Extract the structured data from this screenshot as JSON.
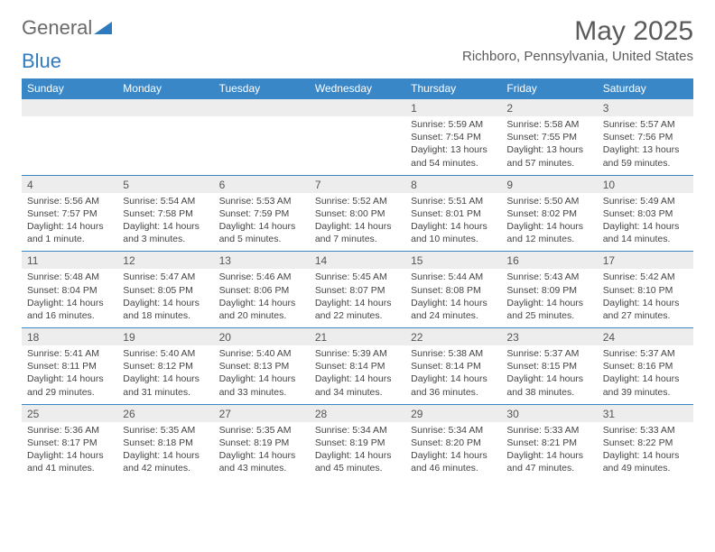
{
  "logo": {
    "text_a": "General",
    "text_b": "Blue"
  },
  "title": "May 2025",
  "location": "Richboro, Pennsylvania, United States",
  "colors": {
    "header_bg": "#3a87c7",
    "header_text": "#ffffff",
    "date_row_bg": "#ededed",
    "row_border": "#3a87c7",
    "body_text": "#444444"
  },
  "weekdays": [
    "Sunday",
    "Monday",
    "Tuesday",
    "Wednesday",
    "Thursday",
    "Friday",
    "Saturday"
  ],
  "weeks": [
    [
      null,
      null,
      null,
      null,
      {
        "d": "1",
        "sr": "5:59 AM",
        "ss": "7:54 PM",
        "dl": "13 hours and 54 minutes."
      },
      {
        "d": "2",
        "sr": "5:58 AM",
        "ss": "7:55 PM",
        "dl": "13 hours and 57 minutes."
      },
      {
        "d": "3",
        "sr": "5:57 AM",
        "ss": "7:56 PM",
        "dl": "13 hours and 59 minutes."
      }
    ],
    [
      {
        "d": "4",
        "sr": "5:56 AM",
        "ss": "7:57 PM",
        "dl": "14 hours and 1 minute."
      },
      {
        "d": "5",
        "sr": "5:54 AM",
        "ss": "7:58 PM",
        "dl": "14 hours and 3 minutes."
      },
      {
        "d": "6",
        "sr": "5:53 AM",
        "ss": "7:59 PM",
        "dl": "14 hours and 5 minutes."
      },
      {
        "d": "7",
        "sr": "5:52 AM",
        "ss": "8:00 PM",
        "dl": "14 hours and 7 minutes."
      },
      {
        "d": "8",
        "sr": "5:51 AM",
        "ss": "8:01 PM",
        "dl": "14 hours and 10 minutes."
      },
      {
        "d": "9",
        "sr": "5:50 AM",
        "ss": "8:02 PM",
        "dl": "14 hours and 12 minutes."
      },
      {
        "d": "10",
        "sr": "5:49 AM",
        "ss": "8:03 PM",
        "dl": "14 hours and 14 minutes."
      }
    ],
    [
      {
        "d": "11",
        "sr": "5:48 AM",
        "ss": "8:04 PM",
        "dl": "14 hours and 16 minutes."
      },
      {
        "d": "12",
        "sr": "5:47 AM",
        "ss": "8:05 PM",
        "dl": "14 hours and 18 minutes."
      },
      {
        "d": "13",
        "sr": "5:46 AM",
        "ss": "8:06 PM",
        "dl": "14 hours and 20 minutes."
      },
      {
        "d": "14",
        "sr": "5:45 AM",
        "ss": "8:07 PM",
        "dl": "14 hours and 22 minutes."
      },
      {
        "d": "15",
        "sr": "5:44 AM",
        "ss": "8:08 PM",
        "dl": "14 hours and 24 minutes."
      },
      {
        "d": "16",
        "sr": "5:43 AM",
        "ss": "8:09 PM",
        "dl": "14 hours and 25 minutes."
      },
      {
        "d": "17",
        "sr": "5:42 AM",
        "ss": "8:10 PM",
        "dl": "14 hours and 27 minutes."
      }
    ],
    [
      {
        "d": "18",
        "sr": "5:41 AM",
        "ss": "8:11 PM",
        "dl": "14 hours and 29 minutes."
      },
      {
        "d": "19",
        "sr": "5:40 AM",
        "ss": "8:12 PM",
        "dl": "14 hours and 31 minutes."
      },
      {
        "d": "20",
        "sr": "5:40 AM",
        "ss": "8:13 PM",
        "dl": "14 hours and 33 minutes."
      },
      {
        "d": "21",
        "sr": "5:39 AM",
        "ss": "8:14 PM",
        "dl": "14 hours and 34 minutes."
      },
      {
        "d": "22",
        "sr": "5:38 AM",
        "ss": "8:14 PM",
        "dl": "14 hours and 36 minutes."
      },
      {
        "d": "23",
        "sr": "5:37 AM",
        "ss": "8:15 PM",
        "dl": "14 hours and 38 minutes."
      },
      {
        "d": "24",
        "sr": "5:37 AM",
        "ss": "8:16 PM",
        "dl": "14 hours and 39 minutes."
      }
    ],
    [
      {
        "d": "25",
        "sr": "5:36 AM",
        "ss": "8:17 PM",
        "dl": "14 hours and 41 minutes."
      },
      {
        "d": "26",
        "sr": "5:35 AM",
        "ss": "8:18 PM",
        "dl": "14 hours and 42 minutes."
      },
      {
        "d": "27",
        "sr": "5:35 AM",
        "ss": "8:19 PM",
        "dl": "14 hours and 43 minutes."
      },
      {
        "d": "28",
        "sr": "5:34 AM",
        "ss": "8:19 PM",
        "dl": "14 hours and 45 minutes."
      },
      {
        "d": "29",
        "sr": "5:34 AM",
        "ss": "8:20 PM",
        "dl": "14 hours and 46 minutes."
      },
      {
        "d": "30",
        "sr": "5:33 AM",
        "ss": "8:21 PM",
        "dl": "14 hours and 47 minutes."
      },
      {
        "d": "31",
        "sr": "5:33 AM",
        "ss": "8:22 PM",
        "dl": "14 hours and 49 minutes."
      }
    ]
  ],
  "labels": {
    "sunrise": "Sunrise: ",
    "sunset": "Sunset: ",
    "daylight": "Daylight: "
  }
}
